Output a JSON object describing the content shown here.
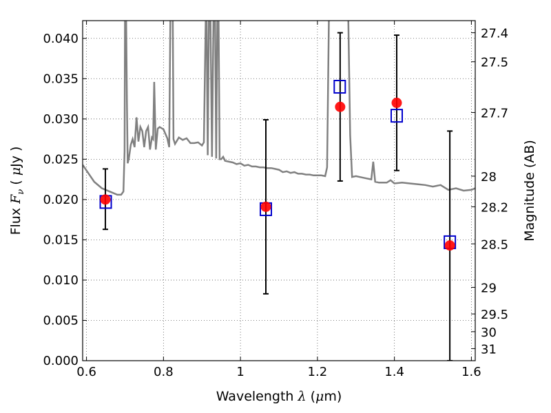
{
  "chart_data": {
    "type": "scatter",
    "title": "",
    "xlabel": {
      "prefix": "Wavelength  ",
      "symbol": "λ",
      "suffix_open": " (",
      "unit_mu": "μ",
      "suffix_close": "m)"
    },
    "ylabel": {
      "prefix": "Flux  ",
      "symbol": "F",
      "subscript": "ν",
      "middle": "  ( ",
      "unit_mu": "μ",
      "suffix": "Jy )"
    },
    "y2label": "Magnitude (AB)",
    "xlim": [
      0.59,
      1.61
    ],
    "ylim": [
      0.0,
      0.0422
    ],
    "xticks": [
      0.6,
      0.8,
      1.0,
      1.2,
      1.4,
      1.6
    ],
    "xtick_labels": [
      "0.6",
      "0.8",
      "1",
      "1.2",
      "1.4",
      "1.6"
    ],
    "yticks": [
      0.0,
      0.005,
      0.01,
      0.015,
      0.02,
      0.025,
      0.03,
      0.035,
      0.04
    ],
    "ytick_labels": [
      "0.000",
      "0.005",
      "0.010",
      "0.015",
      "0.020",
      "0.025",
      "0.030",
      "0.035",
      "0.040"
    ],
    "y2ticks": [
      {
        "flux": 0.0407,
        "label": "27.4"
      },
      {
        "flux": 0.0371,
        "label": "27.5"
      },
      {
        "flux": 0.0308,
        "label": "27.7"
      },
      {
        "flux": 0.0229,
        "label": "28"
      },
      {
        "flux": 0.0191,
        "label": "28.2"
      },
      {
        "flux": 0.0145,
        "label": "28.5"
      },
      {
        "flux": 0.0091,
        "label": "29"
      },
      {
        "flux": 0.0058,
        "label": "29.5"
      },
      {
        "flux": 0.0036,
        "label": "30"
      },
      {
        "flux": 0.0015,
        "label": "31"
      }
    ],
    "grid": true,
    "colors": {
      "model": "#808080",
      "observed": "#ff0000",
      "model_photometry": "#0000cc",
      "errorbar": "#000000",
      "grid": "#555555"
    },
    "observed": [
      {
        "x": 0.649,
        "y": 0.02,
        "yerr_low": 0.0163,
        "yerr_high": 0.0238
      },
      {
        "x": 1.066,
        "y": 0.0191,
        "yerr_low": 0.0083,
        "yerr_high": 0.0299
      },
      {
        "x": 1.259,
        "y": 0.0315,
        "yerr_low": 0.0223,
        "yerr_high": 0.0407
      },
      {
        "x": 1.406,
        "y": 0.032,
        "yerr_low": 0.0236,
        "yerr_high": 0.0404
      },
      {
        "x": 1.544,
        "y": 0.0143,
        "yerr_low": 0.0,
        "yerr_high": 0.0285
      }
    ],
    "model_photometry": [
      {
        "x": 0.65,
        "y": 0.0197
      },
      {
        "x": 1.066,
        "y": 0.0188
      },
      {
        "x": 1.258,
        "y": 0.034
      },
      {
        "x": 1.406,
        "y": 0.0304
      },
      {
        "x": 1.544,
        "y": 0.0147
      }
    ],
    "model_spectrum": {
      "x": [
        0.59,
        0.6,
        0.62,
        0.64,
        0.66,
        0.68,
        0.69,
        0.696,
        0.699,
        0.7,
        0.703,
        0.705,
        0.707,
        0.71,
        0.715,
        0.72,
        0.725,
        0.73,
        0.735,
        0.74,
        0.745,
        0.75,
        0.755,
        0.76,
        0.765,
        0.77,
        0.773,
        0.776,
        0.78,
        0.785,
        0.79,
        0.8,
        0.81,
        0.815,
        0.818,
        0.82,
        0.822,
        0.824,
        0.826,
        0.83,
        0.84,
        0.85,
        0.86,
        0.87,
        0.88,
        0.89,
        0.9,
        0.905,
        0.91,
        0.912,
        0.915,
        0.918,
        0.922,
        0.926,
        0.93,
        0.934,
        0.937,
        0.94,
        0.943,
        0.946,
        0.95,
        0.955,
        0.96,
        0.97,
        0.98,
        0.99,
        1.0,
        1.01,
        1.02,
        1.03,
        1.04,
        1.05,
        1.06,
        1.07,
        1.08,
        1.09,
        1.1,
        1.11,
        1.12,
        1.13,
        1.14,
        1.15,
        1.16,
        1.17,
        1.18,
        1.19,
        1.2,
        1.21,
        1.22,
        1.225,
        1.23,
        1.25,
        1.27,
        1.28,
        1.285,
        1.29,
        1.3,
        1.32,
        1.34,
        1.345,
        1.35,
        1.36,
        1.38,
        1.39,
        1.4,
        1.42,
        1.44,
        1.46,
        1.48,
        1.5,
        1.52,
        1.54,
        1.56,
        1.58,
        1.6,
        1.61
      ],
      "y": [
        0.0243,
        0.0236,
        0.0222,
        0.0214,
        0.021,
        0.0206,
        0.0206,
        0.021,
        0.026,
        0.043,
        0.043,
        0.032,
        0.0245,
        0.0251,
        0.0268,
        0.0275,
        0.0265,
        0.0302,
        0.0272,
        0.029,
        0.0285,
        0.0265,
        0.0285,
        0.029,
        0.0262,
        0.0277,
        0.0275,
        0.0346,
        0.0262,
        0.0288,
        0.029,
        0.0287,
        0.0276,
        0.0265,
        0.043,
        0.043,
        0.043,
        0.043,
        0.0275,
        0.0269,
        0.0277,
        0.0274,
        0.0276,
        0.027,
        0.027,
        0.0271,
        0.0267,
        0.0271,
        0.043,
        0.043,
        0.0255,
        0.043,
        0.043,
        0.0253,
        0.043,
        0.043,
        0.0251,
        0.043,
        0.043,
        0.025,
        0.025,
        0.0253,
        0.0248,
        0.0247,
        0.0246,
        0.0244,
        0.0245,
        0.0242,
        0.0243,
        0.0241,
        0.0241,
        0.024,
        0.024,
        0.0239,
        0.0239,
        0.0238,
        0.0237,
        0.0234,
        0.0235,
        0.0233,
        0.0234,
        0.0232,
        0.0232,
        0.0231,
        0.0231,
        0.023,
        0.023,
        0.023,
        0.0229,
        0.024,
        0.043,
        0.043,
        0.043,
        0.043,
        0.028,
        0.0228,
        0.0229,
        0.0227,
        0.0225,
        0.0247,
        0.0222,
        0.0221,
        0.0221,
        0.0224,
        0.022,
        0.0221,
        0.022,
        0.0219,
        0.0218,
        0.0216,
        0.0218,
        0.0212,
        0.0214,
        0.0211,
        0.0212,
        0.0214
      ]
    }
  }
}
